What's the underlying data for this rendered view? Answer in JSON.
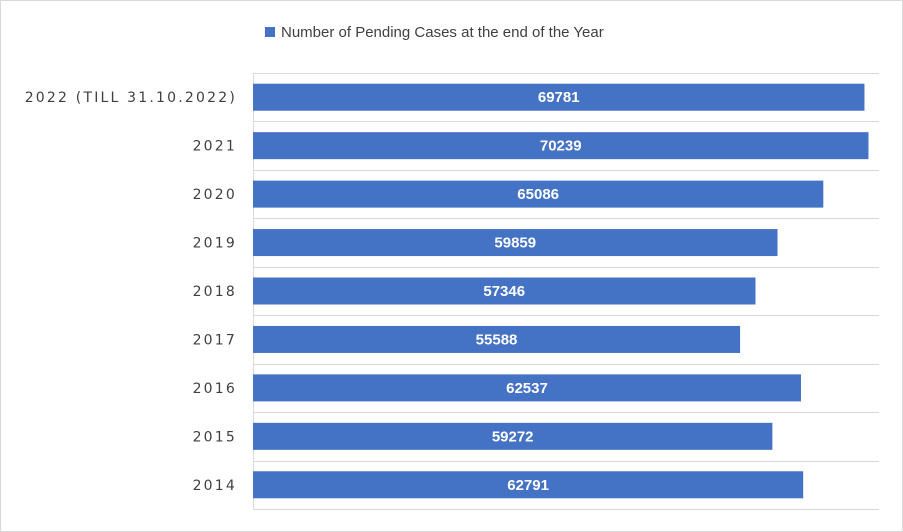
{
  "colors": {
    "bar": "#4472c4",
    "grid": "#d9d9d9",
    "text": "#404040"
  },
  "chart_data": {
    "type": "bar",
    "orientation": "horizontal",
    "categories": [
      "2022 (TILL 31.10.2022)",
      "2021",
      "2020",
      "2019",
      "2018",
      "2017",
      "2016",
      "2015",
      "2014"
    ],
    "series": [
      {
        "name": "Number of Pending Cases at the end of the Year",
        "values": [
          69781,
          70239,
          65086,
          59859,
          57346,
          55588,
          62537,
          59272,
          62791
        ]
      }
    ],
    "xlim": [
      0,
      80000
    ],
    "grid": true,
    "legend": "top",
    "data_labels": true
  }
}
